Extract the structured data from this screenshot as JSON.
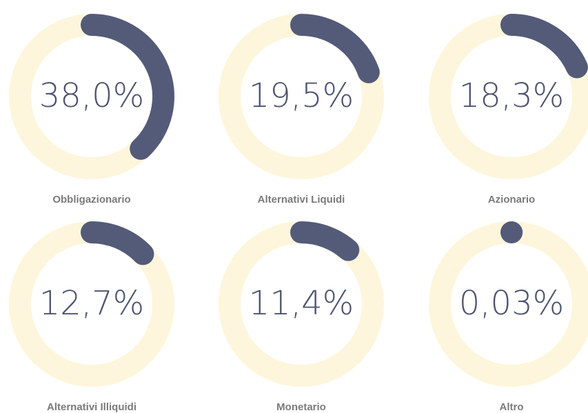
{
  "chart_data": [
    {
      "type": "donut",
      "title": "Obbligazionario",
      "values": [
        38.0
      ],
      "value_labels": [
        "38,0%"
      ],
      "ylim": [
        0,
        100
      ],
      "color": "#545b78",
      "track_color": "#fdf6dc"
    },
    {
      "type": "donut",
      "title": "Alternativi Liquidi",
      "values": [
        19.5
      ],
      "value_labels": [
        "19,5%"
      ],
      "ylim": [
        0,
        100
      ],
      "color": "#545b78",
      "track_color": "#fdf6dc"
    },
    {
      "type": "donut",
      "title": "Azionario",
      "values": [
        18.3
      ],
      "value_labels": [
        "18,3%"
      ],
      "ylim": [
        0,
        100
      ],
      "color": "#545b78",
      "track_color": "#fdf6dc"
    },
    {
      "type": "donut",
      "title": "Alternativi Illiquidi",
      "values": [
        12.7
      ],
      "value_labels": [
        "12,7%"
      ],
      "ylim": [
        0,
        100
      ],
      "color": "#545b78",
      "track_color": "#fdf6dc"
    },
    {
      "type": "donut",
      "title": "Monetario",
      "values": [
        11.4
      ],
      "value_labels": [
        "11,4%"
      ],
      "ylim": [
        0,
        100
      ],
      "color": "#545b78",
      "track_color": "#fdf6dc"
    },
    {
      "type": "donut",
      "title": "Altro",
      "values": [
        0.03
      ],
      "value_labels": [
        "0,03%"
      ],
      "ylim": [
        0,
        100
      ],
      "color": "#545b78",
      "track_color": "#fdf6dc"
    }
  ]
}
